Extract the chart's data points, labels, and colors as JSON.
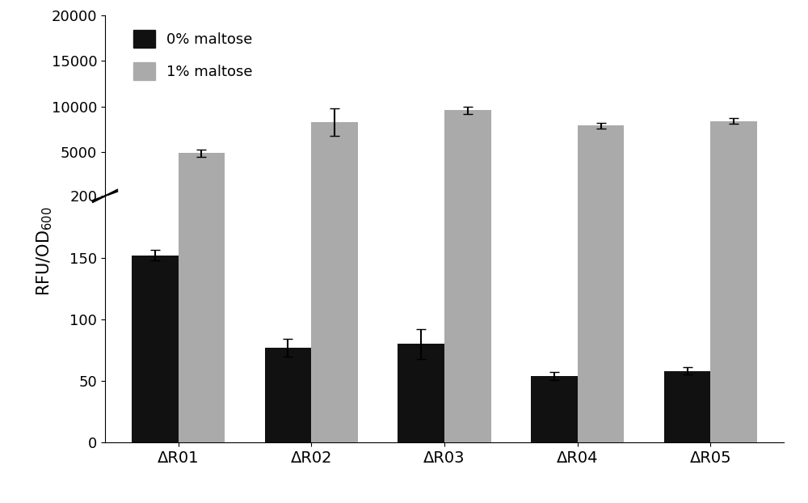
{
  "categories": [
    "ΔR01",
    "ΔR02",
    "ΔR03",
    "ΔR04",
    "ΔR05"
  ],
  "black_values": [
    152,
    77,
    80,
    54,
    58
  ],
  "black_errors": [
    4,
    7,
    12,
    3,
    3
  ],
  "gray_values": [
    4900,
    8300,
    9600,
    7900,
    8400
  ],
  "gray_errors": [
    400,
    1500,
    400,
    300,
    300
  ],
  "black_color": "#111111",
  "gray_color": "#aaaaaa",
  "ylabel": "RFU/OD$_{600}$",
  "legend_labels": [
    "0% maltose",
    "1% maltose"
  ],
  "lower_ylim": [
    0,
    200
  ],
  "upper_ylim": [
    200,
    20000
  ],
  "lower_yticks": [
    0,
    50,
    100,
    150,
    200
  ],
  "upper_yticks": [
    5000,
    10000,
    15000,
    20000
  ],
  "bar_width": 0.35,
  "background_color": "#ffffff",
  "figsize": [
    10.0,
    6.22
  ]
}
